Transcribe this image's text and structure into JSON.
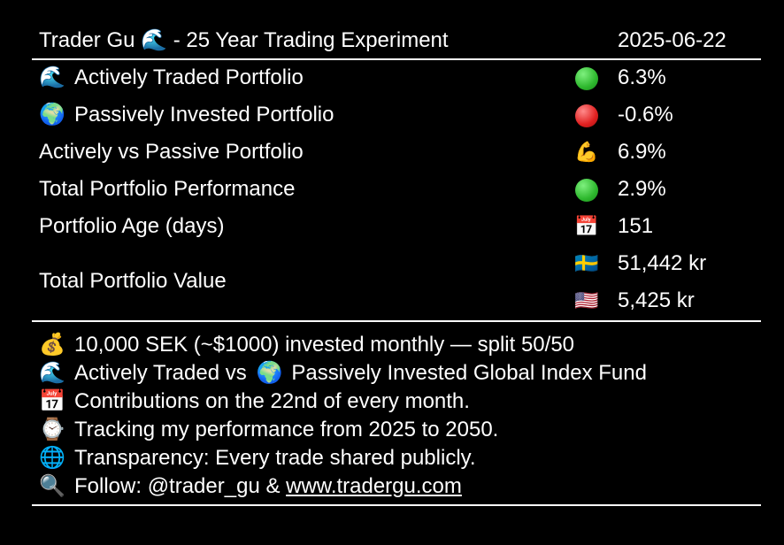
{
  "header": {
    "title_name": "Trader Gu",
    "title_emoji": "🌊",
    "title_suffix": " - 25 Year Trading Experiment",
    "date": "2025-06-22"
  },
  "stats": [
    {
      "emoji": "🌊",
      "label": "Actively Traded Portfolio",
      "status_icon": "green-circle",
      "value": "6.3%"
    },
    {
      "emoji": "🌍",
      "label": "Passively Invested Portfolio",
      "status_icon": "red-circle",
      "value": "-0.6%"
    },
    {
      "emoji": "",
      "label": "Actively vs Passive Portfolio",
      "status_icon": "💪",
      "value": "6.9%"
    },
    {
      "emoji": "",
      "label": "Total Portfolio Performance",
      "status_icon": "green-circle",
      "value": "2.9%"
    },
    {
      "emoji": "",
      "label": "Portfolio Age (days)",
      "status_icon": "📅",
      "value": "151"
    }
  ],
  "total_value": {
    "label": "Total Portfolio Value",
    "entries": [
      {
        "flag": "🇸🇪",
        "value": "51,442 kr"
      },
      {
        "flag": "🇺🇸",
        "value": "5,425 kr"
      }
    ]
  },
  "notes": [
    {
      "emoji": "💰",
      "text": "10,000 SEK (~$1000) invested monthly — split 50/50"
    },
    {
      "emoji": "🌊",
      "text": "Actively Traded vs ",
      "emoji2": "🌍",
      "text2": "Passively Invested Global Index Fund"
    },
    {
      "emoji": "📅",
      "text": "Contributions on the 22nd of every month."
    },
    {
      "emoji": "⌚",
      "text": "Tracking my performance from 2025 to 2050."
    },
    {
      "emoji": "🌐",
      "text": "Transparency: Every trade shared publicly."
    },
    {
      "emoji": "🔍",
      "text": "Follow: @trader_gu & ",
      "link": "www.tradergu.com"
    }
  ],
  "colors": {
    "background": "#000000",
    "text": "#ffffff",
    "green": "#35c635",
    "red": "#e02020"
  }
}
